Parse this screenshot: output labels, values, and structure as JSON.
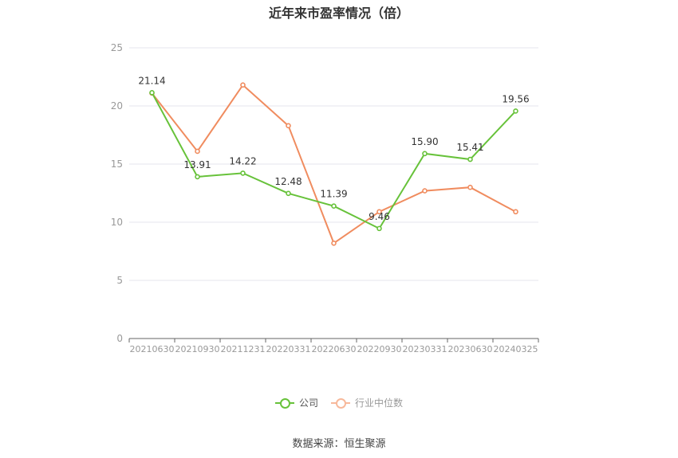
{
  "title": "近年来市盈率情况（倍）",
  "source": "数据来源：恒生聚源",
  "colors": {
    "company": "#67c23a",
    "industry": "#f08c5f",
    "grid": "#e6e6ee",
    "axis": "#666666",
    "tick": "#999999",
    "label": "#333333"
  },
  "legend": [
    {
      "key": "company",
      "label": "公司"
    },
    {
      "key": "industry",
      "label": "行业中位数"
    }
  ],
  "chart_data": {
    "type": "line",
    "title": "近年来市盈率情况（倍）",
    "categories": [
      "20210630",
      "20210930",
      "20211231",
      "20220331",
      "20220630",
      "20220930",
      "20230331",
      "20230630",
      "20240325"
    ],
    "ylim": [
      0,
      25
    ],
    "yticks": [
      0,
      5,
      10,
      15,
      20,
      25
    ],
    "grid": true,
    "legend_position": "bottom",
    "series": [
      {
        "name": "公司",
        "key": "company",
        "values": [
          21.14,
          13.91,
          14.22,
          12.48,
          11.39,
          9.46,
          15.9,
          15.41,
          19.56
        ],
        "labels": [
          "21.14",
          "13.91",
          "14.22",
          "12.48",
          "11.39",
          "9.46",
          "15.90",
          "15.41",
          "19.56"
        ]
      },
      {
        "name": "行业中位数",
        "key": "industry",
        "values": [
          21.1,
          16.1,
          21.8,
          18.3,
          8.2,
          10.9,
          12.7,
          13.0,
          10.9
        ]
      }
    ]
  }
}
